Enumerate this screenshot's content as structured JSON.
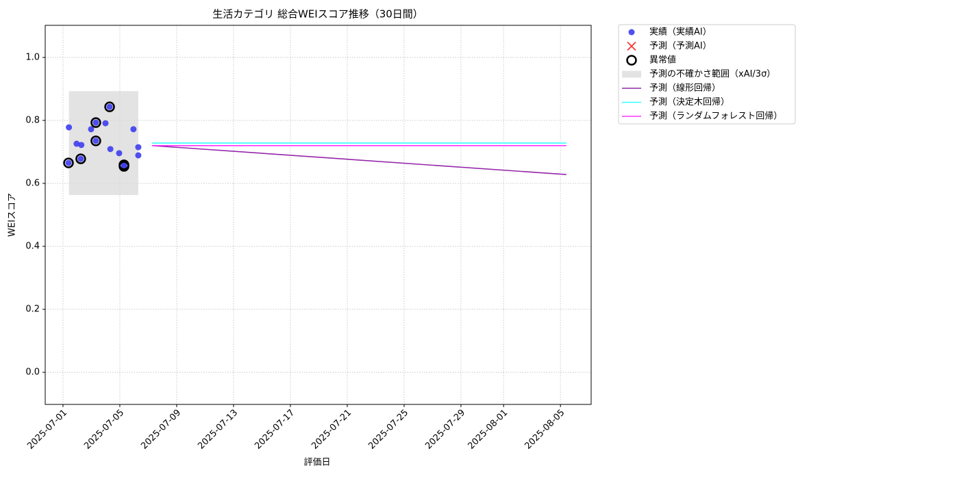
{
  "chart_data": {
    "type": "scatter",
    "title": "生活カテゴリ 総合WEIスコア推移（30日間）",
    "x_label": "評価日",
    "y_label": "WEIスコア",
    "xlim": [
      "2025-06-29T18:00",
      "2025-08-07T03:50"
    ],
    "xticks": [
      "2025-07-01",
      "2025-07-05",
      "2025-07-09",
      "2025-07-13",
      "2025-07-17",
      "2025-07-21",
      "2025-07-25",
      "2025-07-29",
      "2025-08-01",
      "2025-08-05"
    ],
    "ylim": [
      -0.102,
      1.102
    ],
    "yticks": [
      {
        "value": 0,
        "label": "0.0"
      },
      {
        "value": 0.2,
        "label": "0.2"
      },
      {
        "value": 0.4,
        "label": "0.4"
      },
      {
        "value": 0.6,
        "label": "0.6"
      },
      {
        "value": 0.8,
        "label": "0.8"
      },
      {
        "value": 1,
        "label": "1.0"
      }
    ],
    "grid": true,
    "legend": "outside-upper-right",
    "series": [
      {
        "name": "実績（実績AI）",
        "kind": "scatter",
        "color": "#3d3df0",
        "x": [
          "2025-07-01T10:00",
          "2025-07-01T23:00",
          "2025-07-02T07:00",
          "2025-07-01T09:20",
          "2025-07-02T06:00",
          "2025-07-02T23:30",
          "2025-07-03T07:30",
          "2025-07-03T07:30",
          "2025-07-03T23:45",
          "2025-07-04T06:45",
          "2025-07-04T08:00",
          "2025-07-04T22:50",
          "2025-07-05T07:00",
          "2025-07-05T07:00",
          "2025-07-05T23:00",
          "2025-07-06T07:10",
          "2025-07-06T07:10"
        ],
        "values": [
          0.778,
          0.726,
          0.722,
          0.665,
          0.678,
          0.772,
          0.793,
          0.735,
          0.791,
          0.843,
          0.709,
          0.696,
          0.659,
          0.654,
          0.772,
          0.715,
          0.689
        ]
      },
      {
        "name": "予測（予測AI）",
        "kind": "cross",
        "color": "#ff3333",
        "x": [],
        "values": []
      },
      {
        "name": "異常値",
        "kind": "ring",
        "color": "#000000",
        "x": [
          "2025-07-01T09:20",
          "2025-07-02T06:00",
          "2025-07-03T07:30",
          "2025-07-03T07:30",
          "2025-07-04T06:45",
          "2025-07-05T07:00",
          "2025-07-05T07:00"
        ],
        "values": [
          0.665,
          0.678,
          0.793,
          0.735,
          0.843,
          0.659,
          0.654
        ]
      },
      {
        "name": "予測の不確かさ範囲（xAI/3σ）",
        "kind": "band",
        "color": "#d9d9d9",
        "x": [
          "2025-07-01T10:00",
          "2025-07-06T07:10"
        ],
        "values": [
          0.563,
          0.893
        ]
      },
      {
        "name": "予測（線形回帰）",
        "kind": "line",
        "color": "#9426a8",
        "x": [
          "2025-07-07T06:30",
          "2025-08-05T10:00"
        ],
        "values": [
          0.72,
          0.628
        ]
      },
      {
        "name": "予測（決定木回帰）",
        "kind": "line",
        "color": "#33ffff",
        "x": [
          "2025-07-07T06:30",
          "2025-08-05T10:00"
        ],
        "values": [
          0.728,
          0.728
        ]
      },
      {
        "name": "予測（ランダムフォレスト回帰）",
        "kind": "line",
        "color": "#ff33ff",
        "x": [
          "2025-07-07T06:30",
          "2025-08-05T10:00"
        ],
        "values": [
          0.72,
          0.72
        ]
      }
    ]
  }
}
